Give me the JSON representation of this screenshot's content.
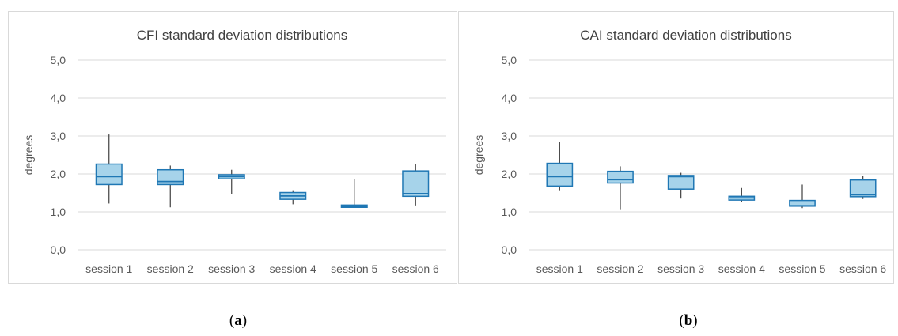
{
  "chart_data": [
    {
      "type": "box",
      "title": "CFI standard deviation distributions",
      "ylabel": "degrees",
      "ylim": [
        0,
        5
      ],
      "yticks": [
        "0,0",
        "1,0",
        "2,0",
        "3,0",
        "4,0",
        "5,0"
      ],
      "categories": [
        "session 1",
        "session 2",
        "session 3",
        "session 4",
        "session 5",
        "session 6"
      ],
      "boxes": [
        {
          "min": 1.22,
          "q1": 1.72,
          "median": 1.93,
          "q3": 2.26,
          "max": 3.04
        },
        {
          "min": 1.12,
          "q1": 1.72,
          "median": 1.8,
          "q3": 2.11,
          "max": 2.22
        },
        {
          "min": 1.46,
          "q1": 1.87,
          "median": 1.93,
          "q3": 1.98,
          "max": 2.11
        },
        {
          "min": 1.2,
          "q1": 1.33,
          "median": 1.42,
          "q3": 1.51,
          "max": 1.57
        },
        {
          "min": 1.11,
          "q1": 1.12,
          "median": 1.15,
          "q3": 1.18,
          "max": 1.86
        },
        {
          "min": 1.17,
          "q1": 1.41,
          "median": 1.48,
          "q3": 2.08,
          "max": 2.26
        }
      ],
      "grid": true,
      "color": "#a6d3ea",
      "edge_color": "#1f77b4"
    },
    {
      "type": "box",
      "title": "CAI standard deviation distributions",
      "ylabel": "degrees",
      "ylim": [
        0,
        5
      ],
      "yticks": [
        "0,0",
        "1,0",
        "2,0",
        "3,0",
        "4,0",
        "5,0"
      ],
      "categories": [
        "session 1",
        "session 2",
        "session 3",
        "session 4",
        "session 5",
        "session 6"
      ],
      "boxes": [
        {
          "min": 1.57,
          "q1": 1.68,
          "median": 1.93,
          "q3": 2.28,
          "max": 2.84
        },
        {
          "min": 1.07,
          "q1": 1.76,
          "median": 1.85,
          "q3": 2.07,
          "max": 2.2
        },
        {
          "min": 1.35,
          "q1": 1.6,
          "median": 1.93,
          "q3": 1.96,
          "max": 2.03
        },
        {
          "min": 1.26,
          "q1": 1.31,
          "median": 1.37,
          "q3": 1.41,
          "max": 1.63
        },
        {
          "min": 1.1,
          "q1": 1.15,
          "median": 1.16,
          "q3": 1.3,
          "max": 1.72
        },
        {
          "min": 1.34,
          "q1": 1.4,
          "median": 1.45,
          "q3": 1.84,
          "max": 1.95
        }
      ],
      "grid": true,
      "color": "#a6d3ea",
      "edge_color": "#1f77b4"
    }
  ],
  "captions": {
    "a": "a",
    "b": "b"
  }
}
